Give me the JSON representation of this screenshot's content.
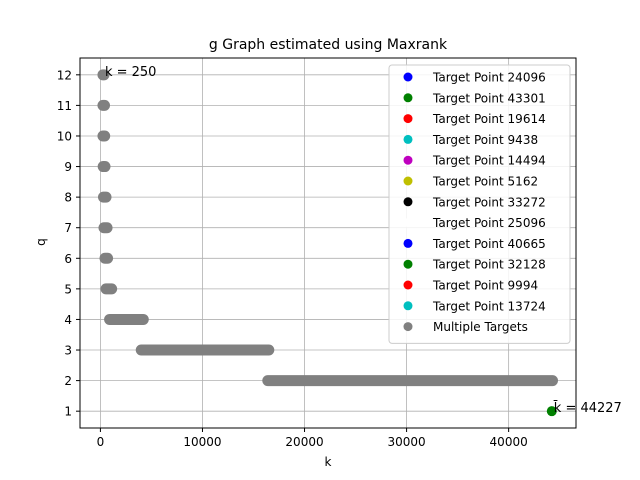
{
  "chart_data": {
    "type": "scatter",
    "title": "g Graph estimated using Maxrank",
    "xlabel": "k",
    "ylabel": "q",
    "xlim": [
      -2000,
      46600
    ],
    "ylim": [
      0.45,
      12.55
    ],
    "xticks": [
      0,
      10000,
      20000,
      30000,
      40000
    ],
    "xtick_labels": [
      "0",
      "10000",
      "20000",
      "30000",
      "40000"
    ],
    "yticks": [
      1,
      2,
      3,
      4,
      5,
      6,
      7,
      8,
      9,
      10,
      11,
      12
    ],
    "ytick_labels": [
      "1",
      "2",
      "3",
      "4",
      "5",
      "6",
      "7",
      "8",
      "9",
      "10",
      "11",
      "12"
    ],
    "grid": true,
    "legend_position": "top-right",
    "legend": [
      {
        "label": "Target Point 24096",
        "color": "#0000ff"
      },
      {
        "label": "Target Point 43301",
        "color": "#008000"
      },
      {
        "label": "Target Point 19614",
        "color": "#ff0000"
      },
      {
        "label": "Target Point 9438",
        "color": "#00bfbf"
      },
      {
        "label": "Target Point 14494",
        "color": "#bf00bf"
      },
      {
        "label": "Target Point 5162",
        "color": "#bfbf00"
      },
      {
        "label": "Target Point 33272",
        "color": "#000000"
      },
      {
        "label": "Target Point 25096",
        "color": "#ffffff"
      },
      {
        "label": "Target Point 40665",
        "color": "#0000ff"
      },
      {
        "label": "Target Point 32128",
        "color": "#008000"
      },
      {
        "label": "Target Point 9994",
        "color": "#ff0000"
      },
      {
        "label": "Target Point 13724",
        "color": "#00bfbf"
      },
      {
        "label": "Multiple Targets",
        "color": "#808080"
      }
    ],
    "segments": [
      {
        "q": 12,
        "k_start": 250,
        "k_end": 350,
        "color": "#808080"
      },
      {
        "q": 11,
        "k_start": 250,
        "k_end": 400,
        "color": "#808080"
      },
      {
        "q": 10,
        "k_start": 250,
        "k_end": 420,
        "color": "#808080"
      },
      {
        "q": 9,
        "k_start": 270,
        "k_end": 450,
        "color": "#808080"
      },
      {
        "q": 8,
        "k_start": 300,
        "k_end": 550,
        "color": "#808080"
      },
      {
        "q": 7,
        "k_start": 350,
        "k_end": 650,
        "color": "#808080"
      },
      {
        "q": 6,
        "k_start": 450,
        "k_end": 700,
        "color": "#808080"
      },
      {
        "q": 5,
        "k_start": 550,
        "k_end": 1100,
        "color": "#808080"
      },
      {
        "q": 4,
        "k_start": 900,
        "k_end": 4200,
        "color": "#808080"
      },
      {
        "q": 3,
        "k_start": 4000,
        "k_end": 16500,
        "color": "#808080"
      },
      {
        "q": 2,
        "k_start": 16400,
        "k_end": 44300,
        "color": "#808080"
      }
    ],
    "points": [
      {
        "k": 44227,
        "q": 1,
        "color": "#008000"
      }
    ],
    "annotations": [
      {
        "text": "k = 250",
        "k": 250,
        "q": 12,
        "anchor": "left"
      },
      {
        "text": "k̄ = 44227",
        "k": 44227,
        "q": 1,
        "anchor": "left"
      }
    ]
  }
}
